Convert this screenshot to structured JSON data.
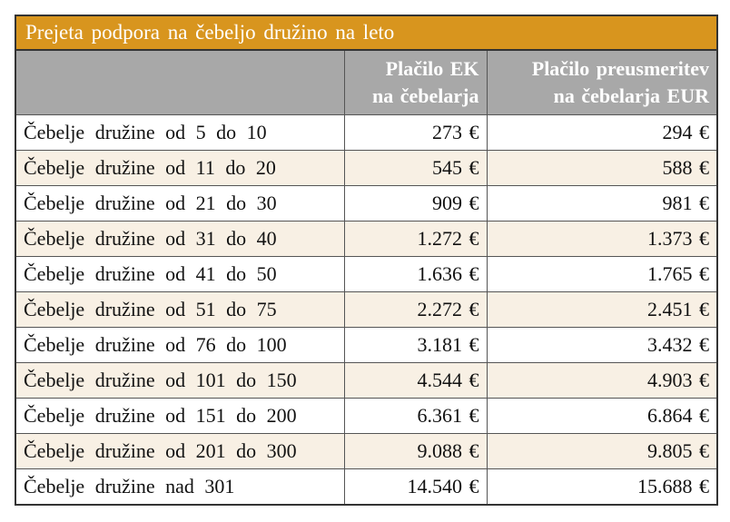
{
  "table": {
    "title": "Prejeta podpora na čebeljo družino na leto",
    "header": [
      [
        "Plačilo EK",
        "na čebelarja"
      ],
      [
        "Plačilo preusmeritev",
        "na čebelarja EUR"
      ]
    ],
    "rows": [
      [
        "Čebelje družine od 5 do 10",
        "273 €",
        "294 €"
      ],
      [
        "Čebelje družine od 11 do 20",
        "545 €",
        "588 €"
      ],
      [
        "Čebelje družine od 21 do 30",
        "909 €",
        "981 €"
      ],
      [
        "Čebelje družine od 31 do 40",
        "1.272 €",
        "1.373 €"
      ],
      [
        "Čebelje družine od 41 do 50",
        "1.636 €",
        "1.765 €"
      ],
      [
        "Čebelje družine od 51 do 75",
        "2.272 €",
        "2.451 €"
      ],
      [
        "Čebelje družine od 76 do 100",
        "3.181 €",
        "3.432 €"
      ],
      [
        "Čebelje družine od 101 do 150",
        "4.544 €",
        "4.903 €"
      ],
      [
        "Čebelje družine od 151 do 200",
        "6.361 €",
        "6.864 €"
      ],
      [
        "Čebelje družine od 201 do 300",
        "9.088 €",
        "9.805 €"
      ],
      [
        "Čebelje družine nad 301",
        "14.540 €",
        "15.688 €"
      ]
    ]
  }
}
